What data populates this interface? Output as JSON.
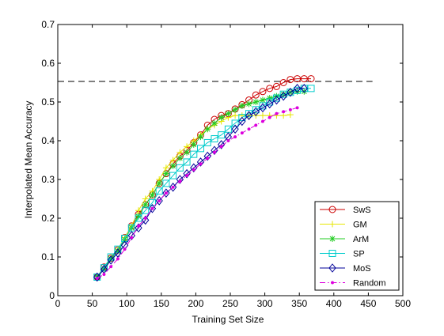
{
  "chart_data": {
    "type": "line",
    "title": "",
    "xlabel": "Training Set Size",
    "ylabel": "Interpolated Mean Accuracy",
    "xlim": [
      0,
      500
    ],
    "ylim": [
      0,
      0.7
    ],
    "xticks": [
      "0",
      "50",
      "100",
      "150",
      "200",
      "250",
      "300",
      "350",
      "400",
      "450",
      "500"
    ],
    "yticks": [
      "0",
      "0.1",
      "0.2",
      "0.3",
      "0.4",
      "0.5",
      "0.6",
      "0.7"
    ],
    "grid": false,
    "legend_position": "bottom-right",
    "reference_line": {
      "y": 0.553,
      "x_range": [
        0,
        456
      ],
      "style": "dashed",
      "color": "#000000"
    },
    "series": [
      {
        "name": "SwS",
        "color": "#cc0000",
        "marker": "circle",
        "linestyle": "solid",
        "x": [
          57,
          67,
          77,
          87,
          97,
          107,
          117,
          127,
          137,
          147,
          157,
          167,
          177,
          187,
          197,
          207,
          217,
          227,
          237,
          247,
          257,
          267,
          277,
          287,
          297,
          307,
          317,
          327,
          337,
          347,
          357,
          367
        ],
        "y": [
          0.048,
          0.074,
          0.097,
          0.118,
          0.15,
          0.18,
          0.21,
          0.235,
          0.26,
          0.29,
          0.315,
          0.34,
          0.36,
          0.375,
          0.395,
          0.415,
          0.44,
          0.455,
          0.465,
          0.47,
          0.482,
          0.493,
          0.505,
          0.518,
          0.527,
          0.535,
          0.54,
          0.55,
          0.558,
          0.56,
          0.56,
          0.56
        ]
      },
      {
        "name": "GM",
        "color": "#e6e600",
        "marker": "plus",
        "linestyle": "solid",
        "x": [
          57,
          67,
          77,
          87,
          97,
          107,
          117,
          127,
          137,
          147,
          157,
          167,
          177,
          187,
          197,
          207,
          217,
          227,
          237,
          247,
          257,
          267,
          277,
          287,
          297,
          307,
          317,
          327,
          337
        ],
        "y": [
          0.05,
          0.07,
          0.1,
          0.12,
          0.15,
          0.18,
          0.22,
          0.25,
          0.27,
          0.3,
          0.33,
          0.35,
          0.37,
          0.385,
          0.4,
          0.415,
          0.43,
          0.44,
          0.45,
          0.46,
          0.465,
          0.465,
          0.465,
          0.465,
          0.465,
          0.465,
          0.465,
          0.465,
          0.467
        ]
      },
      {
        "name": "ArM",
        "color": "#22cc22",
        "marker": "asterisk",
        "linestyle": "solid",
        "x": [
          57,
          67,
          77,
          87,
          97,
          107,
          117,
          127,
          137,
          147,
          157,
          167,
          177,
          187,
          197,
          207,
          217,
          227,
          237,
          247,
          257,
          267,
          277,
          287,
          297,
          307,
          317,
          327,
          337,
          347,
          357
        ],
        "y": [
          0.05,
          0.07,
          0.095,
          0.115,
          0.145,
          0.175,
          0.205,
          0.235,
          0.26,
          0.29,
          0.315,
          0.335,
          0.355,
          0.37,
          0.39,
          0.41,
          0.43,
          0.445,
          0.46,
          0.47,
          0.48,
          0.49,
          0.495,
          0.5,
          0.505,
          0.51,
          0.515,
          0.52,
          0.525,
          0.527,
          0.527
        ]
      },
      {
        "name": "SP",
        "color": "#00cccc",
        "marker": "square",
        "linestyle": "solid",
        "x": [
          57,
          67,
          77,
          87,
          97,
          107,
          117,
          127,
          137,
          147,
          157,
          167,
          177,
          187,
          197,
          207,
          217,
          227,
          237,
          247,
          257,
          267,
          277,
          287,
          297,
          307,
          317,
          327,
          337,
          347,
          357,
          367
        ],
        "y": [
          0.048,
          0.072,
          0.1,
          0.12,
          0.148,
          0.175,
          0.2,
          0.22,
          0.24,
          0.27,
          0.29,
          0.31,
          0.33,
          0.345,
          0.365,
          0.38,
          0.395,
          0.405,
          0.415,
          0.43,
          0.445,
          0.46,
          0.47,
          0.48,
          0.49,
          0.5,
          0.51,
          0.52,
          0.525,
          0.53,
          0.535,
          0.535
        ]
      },
      {
        "name": "MoS",
        "color": "#000099",
        "marker": "diamond",
        "linestyle": "solid",
        "x": [
          57,
          67,
          77,
          87,
          97,
          107,
          117,
          127,
          137,
          147,
          157,
          167,
          177,
          187,
          197,
          207,
          217,
          227,
          237,
          247,
          257,
          267,
          277,
          287,
          297,
          307,
          317,
          327,
          337,
          347,
          357
        ],
        "y": [
          0.048,
          0.068,
          0.092,
          0.11,
          0.13,
          0.155,
          0.175,
          0.195,
          0.225,
          0.245,
          0.265,
          0.28,
          0.3,
          0.315,
          0.33,
          0.345,
          0.36,
          0.375,
          0.39,
          0.41,
          0.43,
          0.45,
          0.465,
          0.475,
          0.485,
          0.495,
          0.505,
          0.515,
          0.525,
          0.535,
          0.535
        ]
      },
      {
        "name": "Random",
        "color": "#dd00dd",
        "marker": "point",
        "linestyle": "dashdot",
        "x": [
          57,
          67,
          77,
          87,
          97,
          107,
          117,
          127,
          137,
          147,
          157,
          167,
          177,
          187,
          197,
          207,
          217,
          227,
          237,
          247,
          257,
          267,
          277,
          287,
          297,
          307,
          317,
          327,
          337,
          347
        ],
        "y": [
          0.045,
          0.055,
          0.075,
          0.095,
          0.12,
          0.15,
          0.18,
          0.2,
          0.225,
          0.245,
          0.265,
          0.28,
          0.295,
          0.31,
          0.325,
          0.34,
          0.355,
          0.37,
          0.385,
          0.4,
          0.41,
          0.42,
          0.43,
          0.44,
          0.45,
          0.46,
          0.47,
          0.475,
          0.48,
          0.485
        ]
      }
    ]
  }
}
